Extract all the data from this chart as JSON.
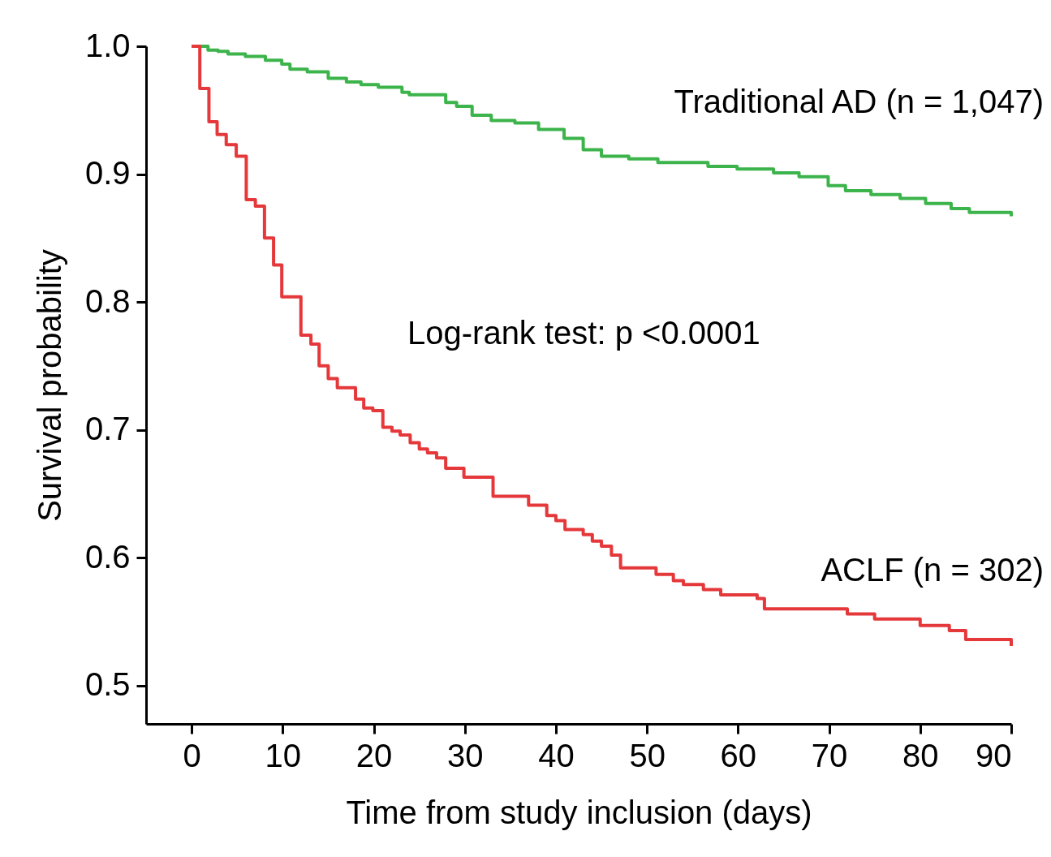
{
  "chart_data": {
    "type": "step",
    "xlabel": "Time from study inclusion (days)",
    "ylabel": "Survival probability",
    "xlim": [
      -5,
      90
    ],
    "xticks": [
      0,
      10,
      20,
      30,
      40,
      50,
      60,
      70,
      80,
      90
    ],
    "ylim": [
      0.47,
      1.0
    ],
    "yticks": [
      0.5,
      {
        "value": 0.6,
        "label": "0.6"
      },
      0.7,
      0.8,
      0.9,
      {
        "value": 1.0,
        "label": "1.0"
      }
    ],
    "grid": false,
    "line_style": "solid",
    "marker": "none",
    "annotations": [
      "Log-rank test: p <0.0001"
    ],
    "series": [
      {
        "name": "Traditional AD (n = 1,047)",
        "color": "#3cb44b",
        "x": [
          0,
          1.8,
          2.9,
          4.0,
          5.9,
          8.1,
          9.9,
          10.8,
          12.7,
          15.0,
          17.0,
          18.6,
          20.5,
          23.1,
          23.9,
          27.9,
          29.1,
          30.8,
          32.9,
          35.5,
          38.1,
          40.9,
          43.0,
          45.0,
          48.0,
          51.2,
          56.7,
          59.9,
          63.9,
          66.7,
          69.9,
          71.8,
          74.6,
          77.8,
          80.6,
          83.4,
          85.4,
          90
        ],
        "values": [
          1.0,
          0.997,
          0.996,
          0.994,
          0.992,
          0.989,
          0.986,
          0.982,
          0.98,
          0.975,
          0.972,
          0.97,
          0.968,
          0.964,
          0.962,
          0.956,
          0.953,
          0.946,
          0.942,
          0.94,
          0.935,
          0.928,
          0.919,
          0.914,
          0.912,
          0.909,
          0.906,
          0.904,
          0.901,
          0.898,
          0.891,
          0.887,
          0.884,
          0.881,
          0.877,
          0.873,
          0.87,
          0.867
        ]
      },
      {
        "name": "ACLF (n = 302)",
        "color": "#e5383b",
        "x": [
          0,
          0.9,
          1.9,
          2.8,
          3.8,
          4.9,
          6.0,
          7.0,
          8.0,
          9.0,
          9.9,
          12.0,
          13.1,
          14.0,
          15.0,
          16.0,
          18.0,
          18.9,
          19.9,
          21.0,
          22.0,
          22.9,
          24.0,
          25.0,
          25.9,
          26.9,
          27.9,
          29.9,
          33.1,
          37.0,
          39.0,
          40.0,
          41.0,
          43.0,
          44.0,
          45.0,
          46.1,
          47.1,
          51.0,
          52.9,
          54.0,
          56.2,
          58.1,
          62.1,
          62.9,
          72.0,
          75.0,
          80.0,
          83.2,
          85.0,
          90
        ],
        "values": [
          1.0,
          0.967,
          0.941,
          0.931,
          0.923,
          0.914,
          0.88,
          0.875,
          0.85,
          0.829,
          0.804,
          0.774,
          0.767,
          0.75,
          0.74,
          0.733,
          0.724,
          0.717,
          0.715,
          0.702,
          0.699,
          0.696,
          0.69,
          0.685,
          0.682,
          0.678,
          0.67,
          0.663,
          0.648,
          0.641,
          0.633,
          0.629,
          0.622,
          0.618,
          0.613,
          0.609,
          0.602,
          0.592,
          0.587,
          0.582,
          0.579,
          0.575,
          0.571,
          0.568,
          0.56,
          0.556,
          0.552,
          0.547,
          0.543,
          0.536,
          0.531
        ]
      }
    ]
  }
}
